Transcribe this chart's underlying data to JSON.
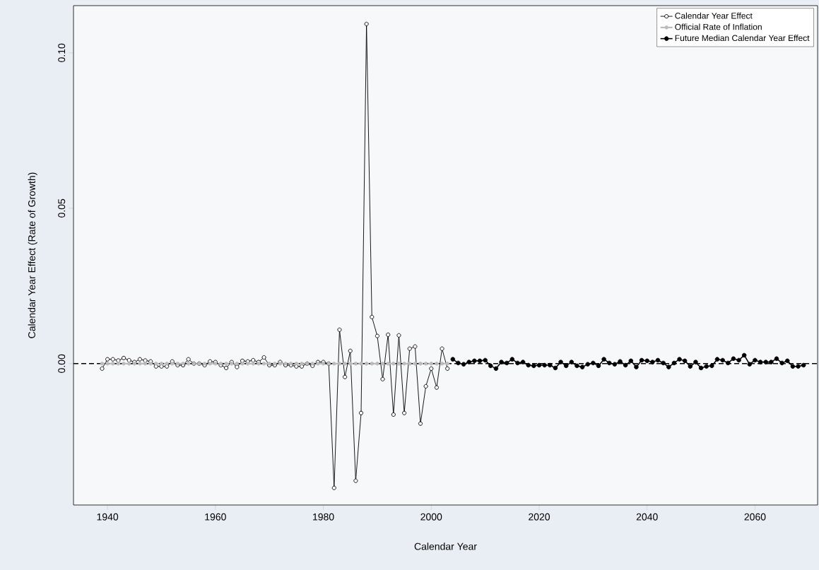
{
  "chart_data": {
    "type": "line",
    "xlabel": "Calendar Year",
    "ylabel": "Calendar Year Effect (Rate of Growth)",
    "xlim": [
      1933.7,
      2071.6
    ],
    "ylim": [
      -0.0455,
      0.1152
    ],
    "xticks": [
      1940,
      1960,
      1980,
      2000,
      2020,
      2040,
      2060
    ],
    "yticks": [
      {
        "value": 0,
        "label": "0.00"
      },
      {
        "value": 0.05,
        "label": "0.05"
      },
      {
        "value": 0.1,
        "label": "0.10"
      }
    ],
    "marker": "circle",
    "legend": "top right",
    "grid": false,
    "ref_lines": [
      {
        "axis": "y",
        "value": 0,
        "color": "#000000",
        "line_style": "dashed"
      }
    ],
    "series": [
      {
        "name": "Calendar Year Effect",
        "color": "#000000",
        "x": [
          1939,
          1940,
          1941,
          1942,
          1943,
          1944,
          1945,
          1946,
          1947,
          1948,
          1949,
          1950,
          1951,
          1952,
          1953,
          1954,
          1955,
          1956,
          1957,
          1958,
          1959,
          1960,
          1961,
          1962,
          1963,
          1964,
          1965,
          1966,
          1967,
          1968,
          1969,
          1970,
          1971,
          1972,
          1973,
          1974,
          1975,
          1976,
          1977,
          1978,
          1979,
          1980,
          1981,
          1982,
          1983,
          1984,
          1985,
          1986,
          1987,
          1988,
          1989,
          1990,
          1991,
          1992,
          1993,
          1994,
          1995,
          1996,
          1997,
          1998,
          1999,
          2000,
          2001,
          2002,
          2003
        ],
        "values": [
          -0.0016,
          0.0014,
          0.0014,
          0.001,
          0.0018,
          0.0011,
          0.0005,
          0.0014,
          0.001,
          0.0007,
          -0.0009,
          -0.0009,
          -0.0009,
          0.0007,
          -0.0005,
          -0.0005,
          0.0014,
          0,
          0,
          -0.0005,
          0.0007,
          0.0005,
          -0.0005,
          -0.0014,
          0.0005,
          -0.0011,
          0.0009,
          0.0007,
          0.0011,
          0.0005,
          0.002,
          -0.0005,
          -0.0005,
          0.0005,
          -0.0005,
          -0.0005,
          -0.0009,
          -0.0009,
          0,
          -0.0007,
          0.0005,
          0.0005,
          0,
          -0.04,
          0.0109,
          -0.0043,
          0.0041,
          -0.0377,
          -0.0159,
          0.1093,
          0.015,
          0.0089,
          -0.005,
          0.0093,
          -0.0164,
          0.0091,
          -0.0159,
          0.0048,
          0.0055,
          -0.0193,
          -0.0073,
          -0.0016,
          -0.0077,
          0.0048,
          -0.0016
        ]
      },
      {
        "name": "Official Rate of Inflation",
        "color": "#bbbbbb",
        "x": [
          1939,
          1940,
          1941,
          1942,
          1943,
          1944,
          1945,
          1946,
          1947,
          1948,
          1949,
          1950,
          1951,
          1952,
          1953,
          1954,
          1955,
          1956,
          1957,
          1958,
          1959,
          1960,
          1961,
          1962,
          1963,
          1964,
          1965,
          1966,
          1967,
          1968,
          1969,
          1970,
          1971,
          1972,
          1973,
          1974,
          1975,
          1976,
          1977,
          1978,
          1979,
          1980,
          1981,
          1982,
          1983,
          1984,
          1985,
          1986,
          1987,
          1988,
          1989,
          1990,
          1991,
          1992,
          1993,
          1994,
          1995,
          1996,
          1997,
          1998,
          1999,
          2000,
          2001,
          2002,
          2003
        ],
        "values": [
          0,
          0,
          0,
          0,
          0,
          0,
          0,
          0,
          0,
          0,
          0,
          0,
          0,
          0,
          0,
          0,
          0,
          0,
          0,
          0,
          0,
          0,
          0,
          0,
          0,
          0,
          0,
          0,
          0,
          0,
          0,
          0,
          0,
          0,
          0,
          0,
          0,
          0,
          0,
          0,
          0,
          0,
          0,
          0,
          0,
          0,
          0,
          0,
          0,
          0,
          0,
          0,
          0,
          0,
          0,
          0,
          0,
          0,
          0,
          0,
          0,
          0,
          0,
          0,
          0
        ]
      },
      {
        "name": "Future Median Calendar Year Effect",
        "color": "#000000",
        "x": [
          2004,
          2005,
          2006,
          2007,
          2008,
          2009,
          2010,
          2011,
          2012,
          2013,
          2014,
          2015,
          2016,
          2017,
          2018,
          2019,
          2020,
          2021,
          2022,
          2023,
          2024,
          2025,
          2026,
          2027,
          2028,
          2029,
          2030,
          2031,
          2032,
          2033,
          2034,
          2035,
          2036,
          2037,
          2038,
          2039,
          2040,
          2041,
          2042,
          2043,
          2044,
          2045,
          2046,
          2047,
          2048,
          2049,
          2050,
          2051,
          2052,
          2053,
          2054,
          2055,
          2056,
          2057,
          2058,
          2059,
          2060,
          2061,
          2062,
          2063,
          2064,
          2065,
          2066,
          2067,
          2068,
          2069
        ],
        "values": [
          0.0014,
          0.0002,
          -0.0002,
          0.0005,
          0.0009,
          0.0009,
          0.0011,
          -0.0007,
          -0.0016,
          0.0005,
          0.0002,
          0.0014,
          0.0002,
          0.0005,
          -0.0005,
          -0.0007,
          -0.0005,
          -0.0005,
          -0.0005,
          -0.0014,
          0.0005,
          -0.0007,
          0.0005,
          -0.0007,
          -0.0011,
          -0.0002,
          0.0002,
          -0.0007,
          0.0014,
          0.0002,
          -0.0002,
          0.0007,
          -0.0005,
          0.0009,
          -0.0011,
          0.0011,
          0.0009,
          0.0005,
          0.0011,
          0.0002,
          -0.0011,
          0.0002,
          0.0014,
          0.0009,
          -0.0009,
          0.0005,
          -0.0014,
          -0.0009,
          -0.0007,
          0.0014,
          0.0011,
          0.0002,
          0.0016,
          0.0011,
          0.0027,
          -0.0002,
          0.0011,
          0.0005,
          0.0005,
          0.0005,
          0.0016,
          0.0002,
          0.0009,
          -0.0009,
          -0.0009,
          -0.0005
        ]
      }
    ]
  }
}
